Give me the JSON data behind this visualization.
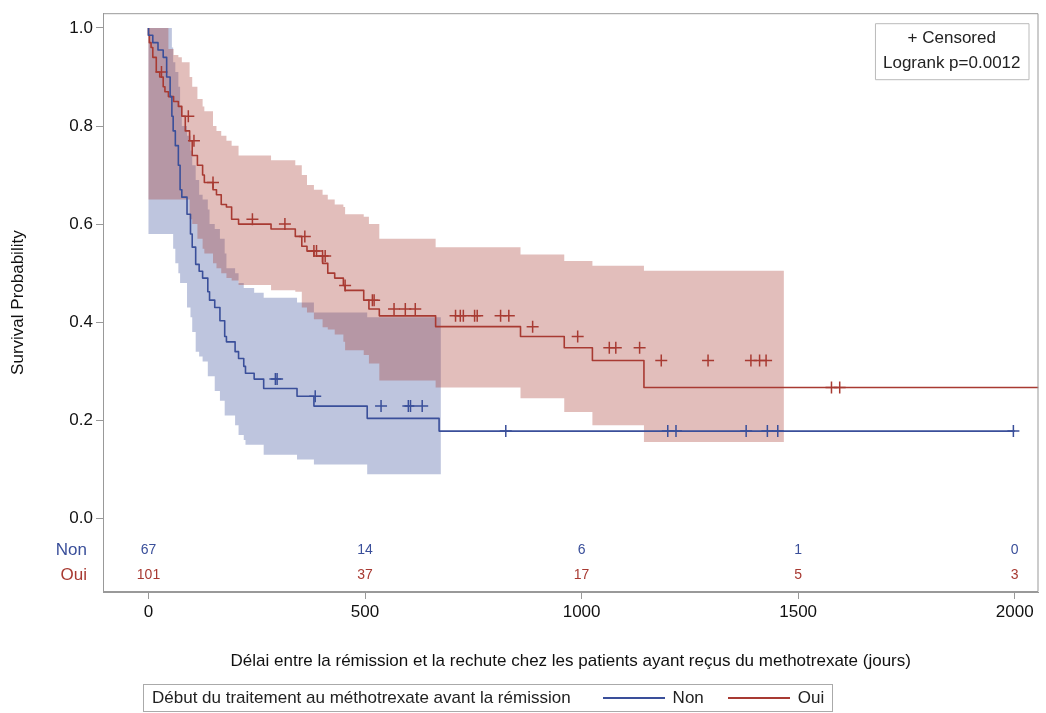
{
  "chart_data": {
    "type": "step",
    "xlabel": "Délai entre la rémission et la rechute chez les patients ayant reçus du methotrexate (jours)",
    "ylabel": "Survival Probability",
    "legend_title": "Début du traitement au méthotrexate avant la rémission",
    "legend": "bottom",
    "grid": false,
    "xlim": [
      -105,
      2055
    ],
    "xticks": [
      0,
      500,
      1000,
      1500,
      2000
    ],
    "ylim": [
      -0.15,
      1.03
    ],
    "yticks": [
      {
        "value": 0,
        "label": "0.0"
      },
      {
        "value": 0.2,
        "label": "0.2"
      },
      {
        "value": 0.4,
        "label": "0.4"
      },
      {
        "value": 0.6,
        "label": "0.6"
      },
      {
        "value": 0.8,
        "label": "0.8"
      },
      {
        "value": 1,
        "label": "1.0"
      }
    ],
    "series": [
      {
        "name": "Non",
        "color": "#3a4f9a",
        "x": [
          0,
          10,
          22,
          34,
          42,
          50,
          54,
          57,
          62,
          69,
          73,
          77,
          89,
          97,
          101,
          109,
          117,
          125,
          137,
          141,
          153,
          165,
          176,
          180,
          200,
          208,
          220,
          224,
          244,
          266,
          343,
          382,
          505,
          671,
          675,
          2000
        ],
        "values": [
          1,
          0.985,
          0.97,
          0.955,
          0.94,
          0.9,
          0.86,
          0.82,
          0.79,
          0.76,
          0.72,
          0.67,
          0.655,
          0.62,
          0.58,
          0.553,
          0.518,
          0.504,
          0.49,
          0.462,
          0.445,
          0.43,
          0.403,
          0.371,
          0.36,
          0.34,
          0.326,
          0.31,
          0.296,
          0.284,
          0.265,
          0.249,
          0.229,
          0.204,
          0.178,
          0.178
        ],
        "lower": [
          0.58,
          0.58,
          0.58,
          0.58,
          0.58,
          0.58,
          0.58,
          0.55,
          0.52,
          0.5,
          0.48,
          0.48,
          0.43,
          0.41,
          0.38,
          0.34,
          0.33,
          0.32,
          0.29,
          0.29,
          0.26,
          0.24,
          0.21,
          0.21,
          0.19,
          0.17,
          0.16,
          0.15,
          0.15,
          0.13,
          0.12,
          0.11,
          0.09,
          0.09,
          0.09,
          null
        ],
        "upper": [
          1,
          1,
          1,
          1,
          1,
          1,
          0.96,
          0.93,
          0.91,
          0.88,
          0.84,
          0.8,
          0.78,
          0.75,
          0.72,
          0.69,
          0.66,
          0.65,
          0.63,
          0.6,
          0.59,
          0.57,
          0.54,
          0.51,
          0.5,
          0.48,
          0.47,
          0.47,
          0.46,
          0.45,
          0.44,
          0.42,
          0.41,
          0.41,
          0.41,
          null
        ]
      },
      {
        "name": "Oui",
        "color": "#a83a32",
        "x": [
          0,
          2,
          6,
          10,
          18,
          26,
          34,
          38,
          46,
          58,
          69,
          77,
          85,
          95,
          101,
          113,
          125,
          129,
          149,
          157,
          168,
          180,
          192,
          208,
          283,
          339,
          354,
          366,
          382,
          402,
          414,
          430,
          450,
          454,
          497,
          509,
          533,
          663,
          859,
          960,
          1025,
          1144,
          1467,
          2055
        ],
        "values": [
          1,
          0.985,
          0.97,
          0.96,
          0.94,
          0.91,
          0.9,
          0.88,
          0.87,
          0.86,
          0.85,
          0.84,
          0.82,
          0.79,
          0.77,
          0.74,
          0.72,
          0.7,
          0.685,
          0.67,
          0.66,
          0.64,
          0.635,
          0.61,
          0.6,
          0.59,
          0.575,
          0.555,
          0.545,
          0.535,
          0.52,
          0.5,
          0.49,
          0.475,
          0.465,
          0.445,
          0.427,
          0.413,
          0.391,
          0.371,
          0.348,
          0.322,
          0.267,
          0.267
        ],
        "lower": [
          0.65,
          0.65,
          0.65,
          0.65,
          0.65,
          0.65,
          0.65,
          0.65,
          0.65,
          0.65,
          0.65,
          0.65,
          0.65,
          0.61,
          0.6,
          0.57,
          0.55,
          0.54,
          0.52,
          0.51,
          0.5,
          0.49,
          0.485,
          0.476,
          0.465,
          0.462,
          0.43,
          0.42,
          0.406,
          0.39,
          0.385,
          0.375,
          0.36,
          0.343,
          0.333,
          0.316,
          0.281,
          0.267,
          0.245,
          0.217,
          0.19,
          0.156,
          0.156,
          null
        ],
        "upper": [
          1,
          1,
          1,
          1,
          1,
          1,
          1,
          1,
          0.957,
          0.945,
          0.94,
          0.93,
          0.93,
          0.9,
          0.88,
          0.855,
          0.84,
          0.83,
          0.8,
          0.79,
          0.78,
          0.77,
          0.76,
          0.74,
          0.73,
          0.72,
          0.7,
          0.68,
          0.67,
          0.66,
          0.65,
          0.64,
          0.635,
          0.62,
          0.615,
          0.6,
          0.57,
          0.553,
          0.538,
          0.525,
          0.515,
          0.505,
          0.505,
          null
        ]
      },
      {
        "type": "scatter",
        "marker": "cross",
        "color": "#3a4f9a",
        "x": [
          293,
          297,
          385,
          537,
          600,
          605,
          632,
          825,
          1199,
          1218,
          1380,
          1429,
          1453,
          1997
        ],
        "values": [
          0.284,
          0.284,
          0.249,
          0.229,
          0.229,
          0.229,
          0.229,
          0.178,
          0.178,
          0.178,
          0.178,
          0.178,
          0.178,
          0.178
        ]
      },
      {
        "type": "scatter",
        "marker": "cross",
        "color": "#a83a32",
        "x": [
          30,
          92,
          105,
          149,
          240,
          315,
          361,
          382,
          388,
          402,
          408,
          454,
          517,
          521,
          567,
          593,
          616,
          709,
          720,
          727,
          753,
          759,
          813,
          832,
          887,
          991,
          1064,
          1079,
          1134,
          1184,
          1292,
          1391,
          1411,
          1426,
          1577,
          1596
        ],
        "values": [
          0.91,
          0.82,
          0.77,
          0.685,
          0.61,
          0.6,
          0.575,
          0.545,
          0.545,
          0.535,
          0.535,
          0.475,
          0.445,
          0.445,
          0.427,
          0.427,
          0.427,
          0.413,
          0.413,
          0.413,
          0.413,
          0.413,
          0.413,
          0.413,
          0.391,
          0.371,
          0.348,
          0.348,
          0.348,
          0.322,
          0.322,
          0.322,
          0.322,
          0.322,
          0.267,
          0.267
        ]
      }
    ],
    "annotations": [
      "+ Censored",
      "Logrank p=0.0012",
      "Non",
      "67",
      "14",
      "6",
      "1",
      "0",
      "Oui",
      "101",
      "37",
      "17",
      "5",
      "3"
    ]
  }
}
